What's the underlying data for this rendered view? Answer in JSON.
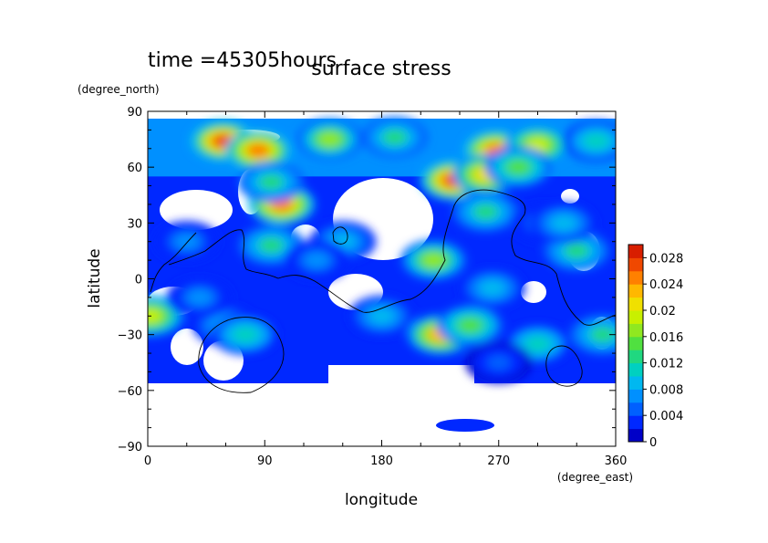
{
  "time_label": "time =45305hours",
  "chart_data": {
    "type": "heatmap",
    "title": "surface stress",
    "xlabel": "longitude",
    "ylabel": "latitude",
    "x_unit": "(degree_east)",
    "y_unit": "(degree_north)",
    "xlim": [
      0,
      360
    ],
    "ylim": [
      -90,
      90
    ],
    "x_ticks": [
      "0",
      "90",
      "180",
      "270",
      "360"
    ],
    "y_ticks": [
      "90",
      "60",
      "30",
      "0",
      "−30",
      "−60",
      "−90"
    ],
    "colorbar": {
      "min": 0,
      "max": 0.03,
      "tick_labels": [
        "0.028",
        "0.024",
        "0.02",
        "0.016",
        "0.012",
        "0.008",
        "0.004",
        "0"
      ],
      "tick_values": [
        0.028,
        0.024,
        0.02,
        0.016,
        0.012,
        0.008,
        0.004,
        0
      ],
      "colors": [
        "#0000c8",
        "#0028ff",
        "#0060ff",
        "#0090ff",
        "#00b8f0",
        "#00d0c0",
        "#20d880",
        "#50e040",
        "#90e820",
        "#c8f000",
        "#f0e000",
        "#ffb800",
        "#ff8000",
        "#f04800",
        "#d81e00"
      ]
    },
    "blobs": [
      {
        "lon": 58,
        "lat": 74,
        "value": 0.026
      },
      {
        "lon": 85,
        "lat": 69,
        "value": 0.024
      },
      {
        "lon": 140,
        "lat": 75,
        "value": 0.016
      },
      {
        "lon": 190,
        "lat": 76,
        "value": 0.012
      },
      {
        "lon": 268,
        "lat": 69,
        "value": 0.024
      },
      {
        "lon": 300,
        "lat": 72,
        "value": 0.018
      },
      {
        "lon": 345,
        "lat": 74,
        "value": 0.01
      },
      {
        "lon": 235,
        "lat": 53,
        "value": 0.026
      },
      {
        "lon": 260,
        "lat": 56,
        "value": 0.02
      },
      {
        "lon": 285,
        "lat": 60,
        "value": 0.014
      },
      {
        "lon": 103,
        "lat": 40,
        "value": 0.024
      },
      {
        "lon": 95,
        "lat": 52,
        "value": 0.012
      },
      {
        "lon": 260,
        "lat": 36,
        "value": 0.012
      },
      {
        "lon": 220,
        "lat": 10,
        "value": 0.016
      },
      {
        "lon": 95,
        "lat": 18,
        "value": 0.012
      },
      {
        "lon": 150,
        "lat": 20,
        "value": 0.008
      },
      {
        "lon": 130,
        "lat": 10,
        "value": 0.006
      },
      {
        "lon": 2,
        "lat": -20,
        "value": 0.018
      },
      {
        "lon": 60,
        "lat": -25,
        "value": 0.008
      },
      {
        "lon": 75,
        "lat": -30,
        "value": 0.01
      },
      {
        "lon": 225,
        "lat": -30,
        "value": 0.022
      },
      {
        "lon": 248,
        "lat": -25,
        "value": 0.014
      },
      {
        "lon": 180,
        "lat": -20,
        "value": 0.008
      },
      {
        "lon": 300,
        "lat": -35,
        "value": 0.01
      },
      {
        "lon": 350,
        "lat": -30,
        "value": 0.012
      },
      {
        "lon": 330,
        "lat": 15,
        "value": 0.012
      },
      {
        "lon": 305,
        "lat": 30,
        "value": 0.006
      },
      {
        "lon": 30,
        "lat": 20,
        "value": 0.006
      },
      {
        "lon": 265,
        "lat": -5,
        "value": 0.008
      },
      {
        "lon": 320,
        "lat": 30,
        "value": 0.008
      },
      {
        "lon": 40,
        "lat": -10,
        "value": 0.006
      },
      {
        "lon": 270,
        "lat": -45,
        "value": 0.004
      }
    ]
  }
}
